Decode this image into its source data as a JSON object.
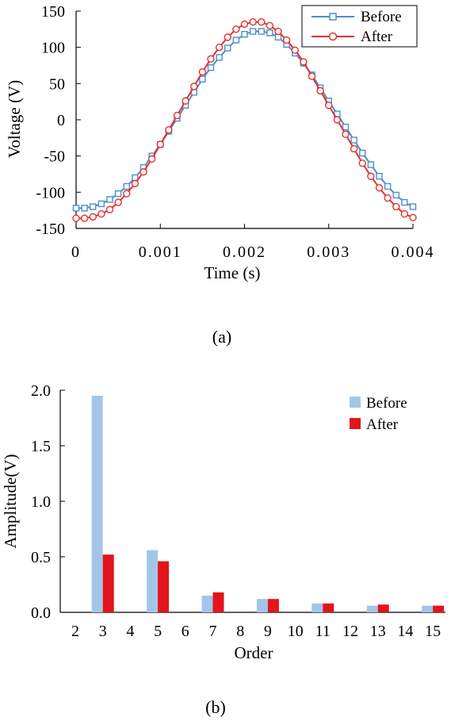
{
  "chart_data": [
    {
      "type": "line",
      "caption": "(a)",
      "xlabel": "Time (s)",
      "ylabel": "Voltage (V)",
      "xlim": [
        0,
        0.004
      ],
      "ylim": [
        -150,
        150
      ],
      "x_ticks": [
        0,
        0.001,
        0.002,
        0.003,
        0.004
      ],
      "x_tick_labels": [
        "0",
        "0.001",
        "0.002",
        "0.003",
        "0.004"
      ],
      "y_ticks": [
        150,
        100,
        50,
        0,
        -50,
        -100,
        -150
      ],
      "y_tick_labels": [
        "150",
        "100",
        "50",
        "0",
        "-50",
        "-100",
        "-150"
      ],
      "grid": false,
      "legend_position": "top-right",
      "x_start": 0,
      "x_step": 0.0001,
      "series": [
        {
          "name": "Before",
          "color": "#4a8fcf",
          "marker": "square",
          "values": [
            -122,
            -122,
            -120,
            -116,
            -110,
            -102,
            -92,
            -80,
            -66,
            -50,
            -34,
            -16,
            2,
            20,
            38,
            56,
            72,
            86,
            99,
            110,
            118,
            122,
            122,
            120,
            114,
            104,
            92,
            78,
            62,
            44,
            26,
            8,
            -10,
            -28,
            -46,
            -62,
            -78,
            -92,
            -104,
            -114,
            -120
          ]
        },
        {
          "name": "After",
          "color": "#e53030",
          "marker": "circle",
          "values": [
            -136,
            -136,
            -134,
            -130,
            -124,
            -114,
            -102,
            -88,
            -72,
            -54,
            -34,
            -14,
            6,
            26,
            46,
            66,
            84,
            100,
            114,
            125,
            132,
            135,
            135,
            130,
            122,
            110,
            96,
            80,
            60,
            40,
            20,
            0,
            -20,
            -40,
            -60,
            -78,
            -94,
            -108,
            -120,
            -130,
            -135
          ]
        }
      ]
    },
    {
      "type": "bar",
      "caption": "(b)",
      "xlabel": "Order",
      "ylabel": "Amplitude(V)",
      "ylim": [
        0,
        2.0
      ],
      "y_ticks": [
        2.0,
        1.5,
        1.0,
        0.5,
        0.0
      ],
      "y_tick_labels": [
        "2.0",
        "1.5",
        "1.0",
        "0.5",
        "0.0"
      ],
      "grid": false,
      "legend_position": "top-right",
      "categories": [
        "2",
        "3",
        "4",
        "5",
        "6",
        "7",
        "8",
        "9",
        "10",
        "11",
        "12",
        "13",
        "14",
        "15"
      ],
      "series": [
        {
          "name": "Before",
          "color": "#a3c6e8",
          "values": [
            0,
            1.95,
            0,
            0.56,
            0,
            0.15,
            0,
            0.12,
            0,
            0.08,
            0,
            0.06,
            0,
            0.06
          ]
        },
        {
          "name": "After",
          "color": "#e3141b",
          "values": [
            0,
            0.52,
            0,
            0.46,
            0,
            0.18,
            0,
            0.12,
            0,
            0.08,
            0,
            0.07,
            0,
            0.06
          ]
        }
      ]
    }
  ]
}
